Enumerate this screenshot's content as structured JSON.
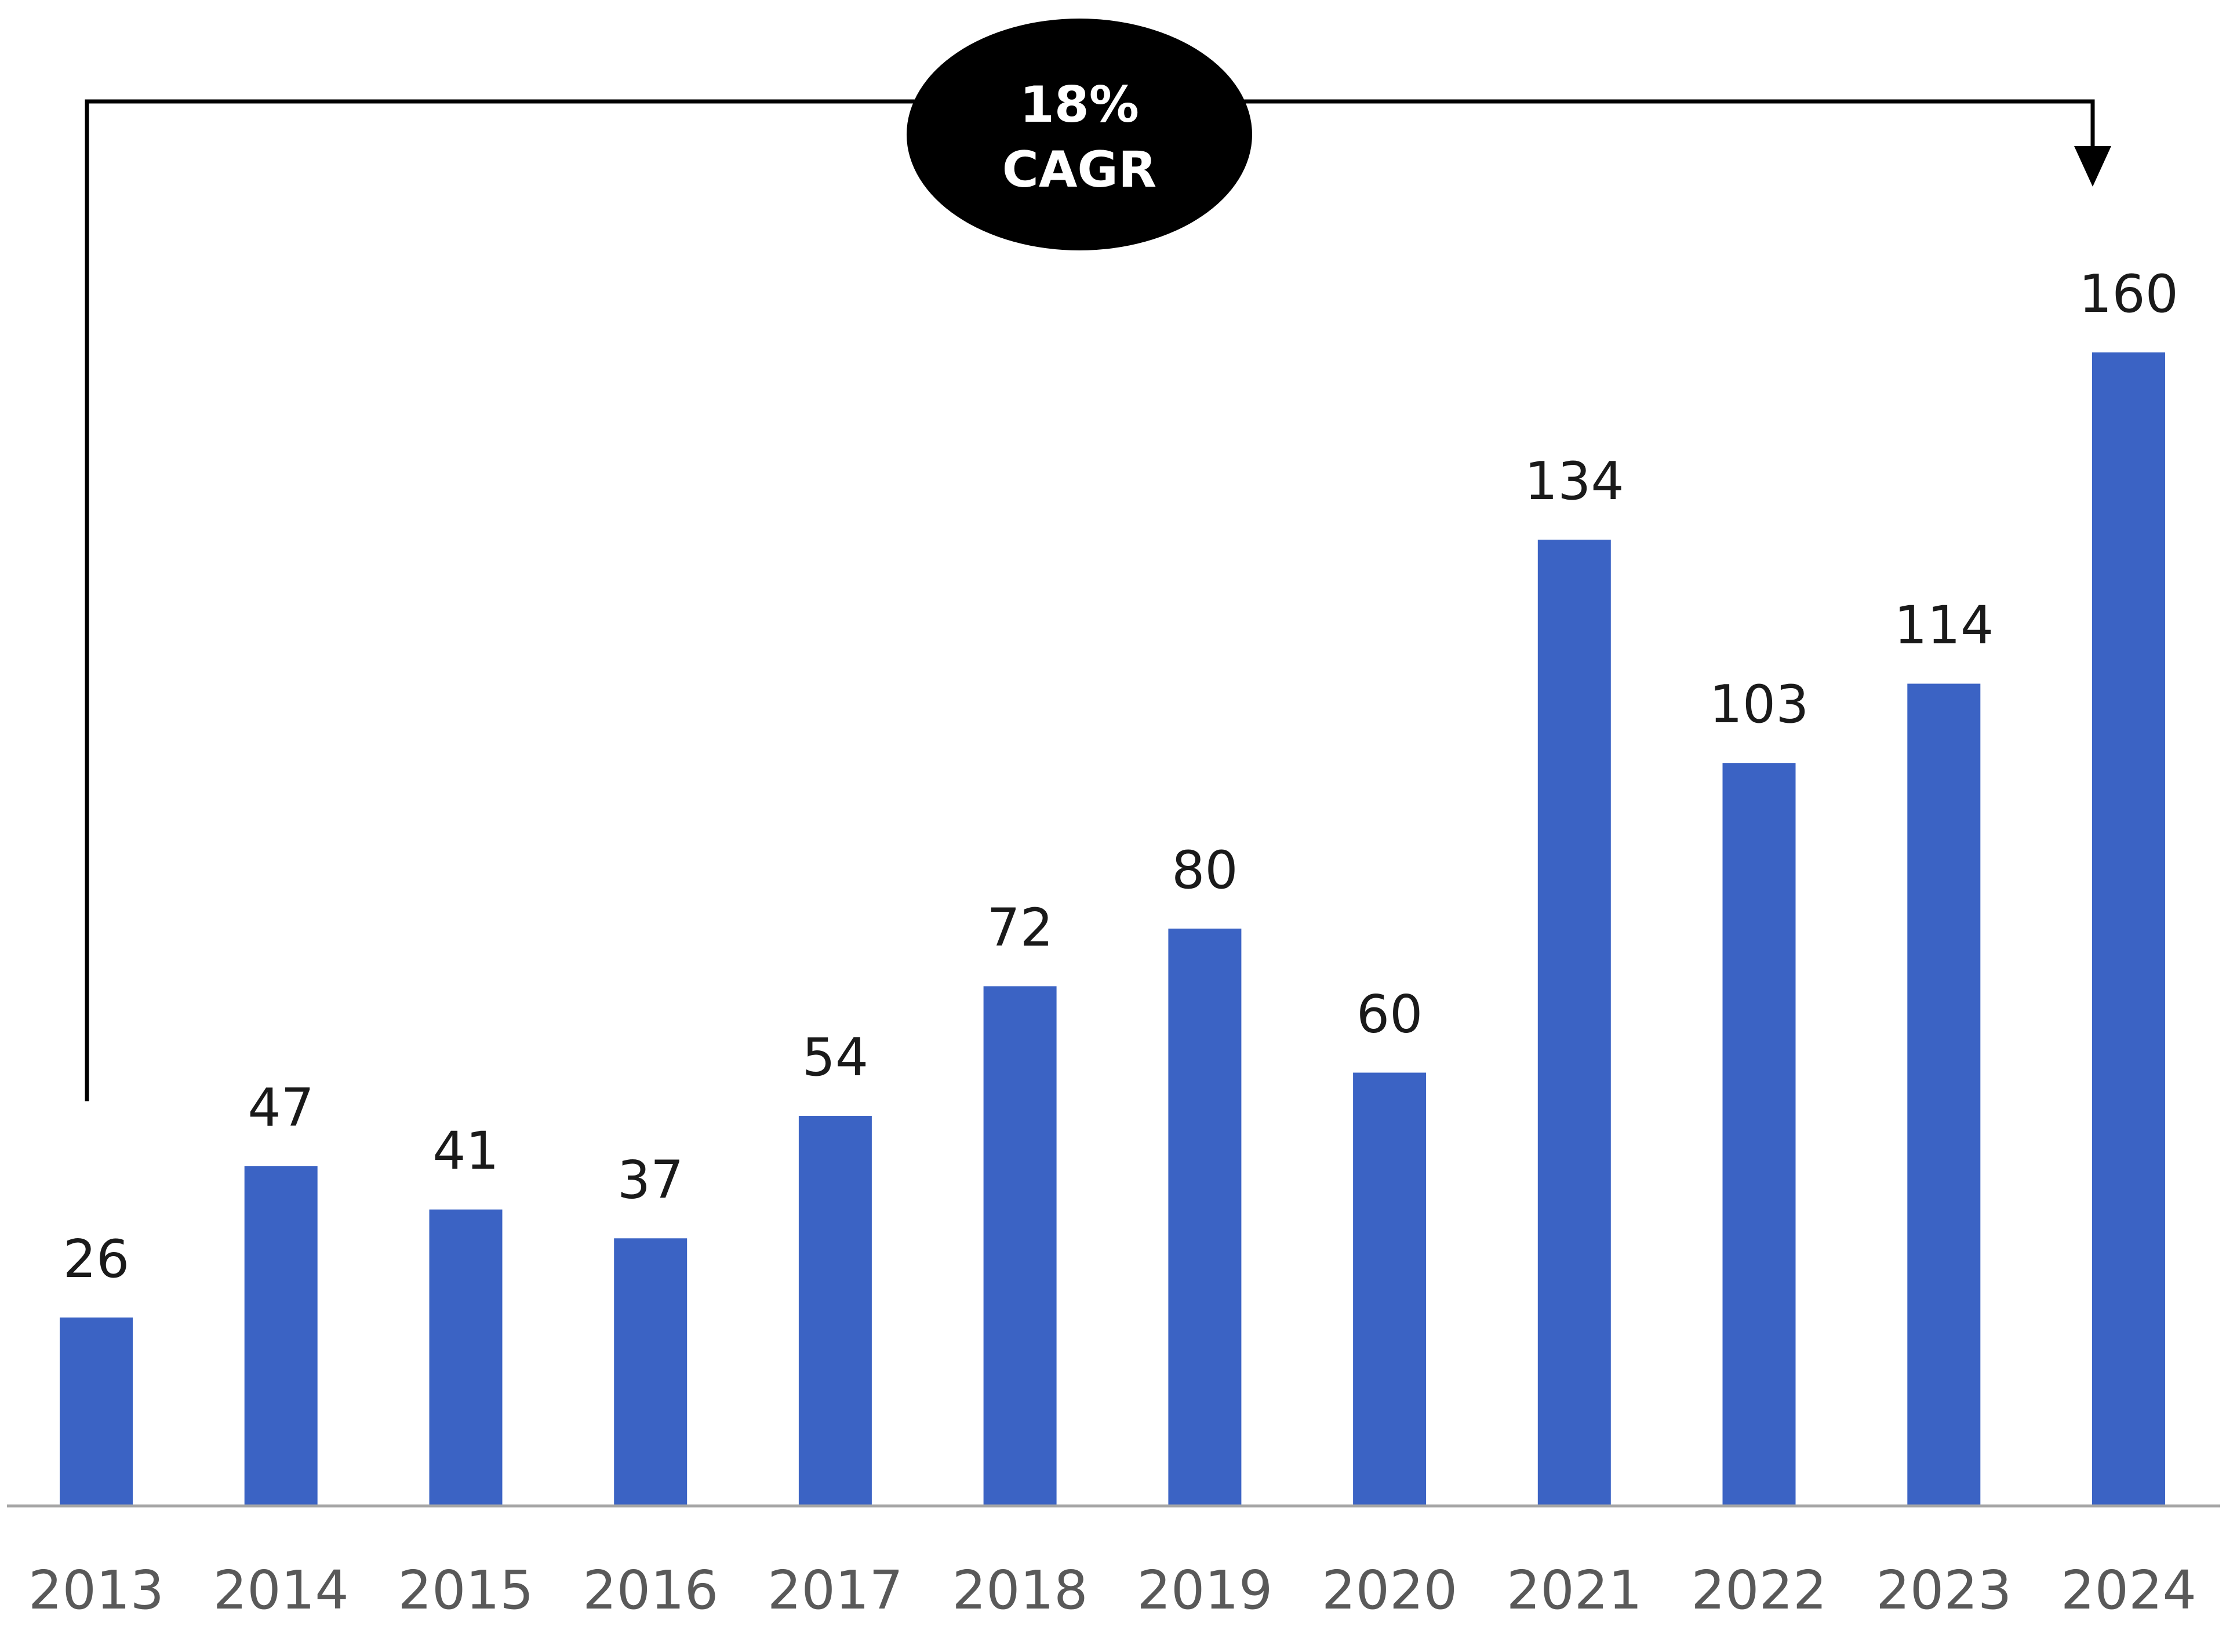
{
  "chart_data": {
    "type": "bar",
    "categories": [
      "2013",
      "2014",
      "2015",
      "2016",
      "2017",
      "2018",
      "2019",
      "2020",
      "2021",
      "2022",
      "2023",
      "2024"
    ],
    "values": [
      26,
      47,
      41,
      37,
      54,
      72,
      80,
      60,
      134,
      103,
      114,
      160
    ],
    "title": "",
    "xlabel": "",
    "ylabel": "",
    "ylim": [
      0,
      160
    ],
    "grid": false,
    "bar_color": "#3b63c4",
    "annotation": {
      "line1": "18%",
      "line2": "CAGR",
      "from": "2013",
      "to": "2024"
    }
  }
}
